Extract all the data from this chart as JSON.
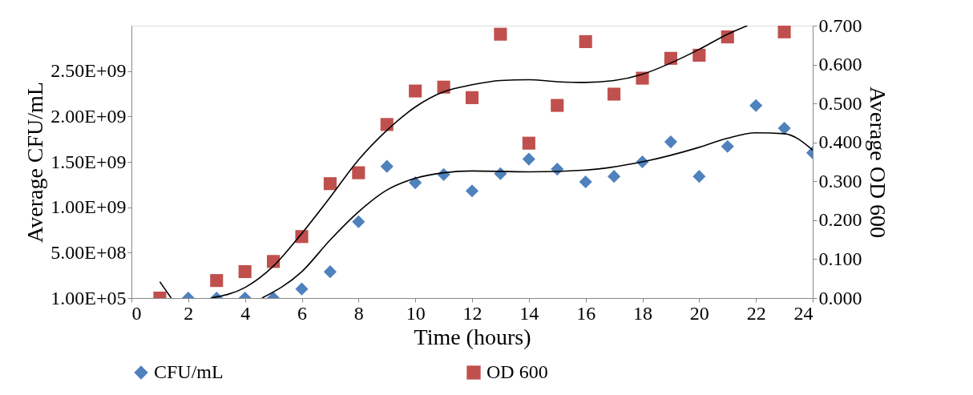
{
  "chart_data": {
    "type": "scatter",
    "xlabel": "Time (hours)",
    "ylabel": "Average CFU/mL",
    "y2label": "Average OD 600",
    "xlim": [
      0,
      24
    ],
    "xticks": [
      0,
      2,
      4,
      6,
      8,
      10,
      12,
      14,
      16,
      18,
      20,
      22,
      24
    ],
    "ylim": [
      100000,
      3000000000
    ],
    "yticks": [
      {
        "value": 100000,
        "label": "1.00E+05"
      },
      {
        "value": 500000000,
        "label": "5.00E+08"
      },
      {
        "value": 1000000000,
        "label": "1.00E+09"
      },
      {
        "value": 1500000000,
        "label": "1.50E+09"
      },
      {
        "value": 2000000000,
        "label": "2.00E+09"
      },
      {
        "value": 2500000000,
        "label": "2.50E+09"
      }
    ],
    "y2lim": [
      0,
      0.7
    ],
    "y2ticks": [
      {
        "value": 0,
        "label": "0.000"
      },
      {
        "value": 0.1,
        "label": "0.100"
      },
      {
        "value": 0.2,
        "label": "0.200"
      },
      {
        "value": 0.3,
        "label": "0.300"
      },
      {
        "value": 0.4,
        "label": "0.400"
      },
      {
        "value": 0.5,
        "label": "0.500"
      },
      {
        "value": 0.6,
        "label": "0.600"
      },
      {
        "value": 0.7,
        "label": "0.700"
      }
    ],
    "grid": false,
    "legend": "bottom",
    "series": [
      {
        "name": "CFU/mL",
        "marker": "diamond",
        "color": "#4f81bd",
        "x": [
          2,
          3,
          4,
          5,
          6,
          7,
          8,
          9,
          10,
          11,
          12,
          13,
          14,
          15,
          16,
          17,
          18,
          19,
          20,
          21,
          22,
          23,
          24
        ],
        "values": [
          100000,
          100000,
          100000,
          100000,
          100000000,
          290000000,
          840000000,
          1450000000,
          1270000000,
          1360000000,
          1180000000,
          1370000000,
          1530000000,
          1420000000,
          1280000000,
          1340000000,
          1500000000,
          1720000000,
          1340000000,
          1670000000,
          2120000000,
          1870000000,
          1600000000
        ]
      },
      {
        "type": "line",
        "color": "#000000",
        "x": [
          1,
          1.4,
          3,
          4.6,
          6,
          7,
          8,
          9,
          10,
          11,
          12,
          14,
          16,
          18,
          20,
          21,
          22,
          23,
          24
        ],
        "values": [
          180000000,
          100000,
          null,
          100000,
          290000000,
          640000000,
          950000000,
          1190000000,
          1320000000,
          1380000000,
          1400000000,
          1390000000,
          1410000000,
          1500000000,
          1660000000,
          1760000000,
          1820000000,
          1810000000,
          1630000000
        ]
      },
      {
        "name": "OD 600",
        "marker": "square",
        "axis": "y2",
        "color": "#c0504d",
        "x": [
          1,
          3,
          4,
          5,
          6,
          7,
          8,
          9,
          10,
          11,
          12,
          13,
          14,
          15,
          16,
          17,
          18,
          19,
          20,
          21,
          23
        ],
        "values": [
          0,
          0.045,
          0.068,
          0.094,
          0.158,
          0.294,
          0.322,
          0.446,
          0.532,
          0.542,
          0.515,
          0.678,
          0.398,
          0.495,
          0.659,
          0.524,
          0.565,
          0.616,
          0.624,
          0.671,
          0.684
        ]
      },
      {
        "type": "line",
        "axis": "y2",
        "color": "#000000",
        "x": [
          2.8,
          4,
          5,
          6,
          7,
          8,
          9,
          10,
          11,
          12,
          13,
          14,
          15,
          16,
          17,
          18,
          19,
          20,
          21,
          21.7
        ],
        "values": [
          0,
          0.027,
          0.082,
          0.166,
          0.259,
          0.355,
          0.431,
          0.491,
          0.53,
          0.548,
          0.559,
          0.561,
          0.556,
          0.554,
          0.559,
          0.575,
          0.604,
          0.639,
          0.678,
          0.7
        ]
      }
    ]
  }
}
